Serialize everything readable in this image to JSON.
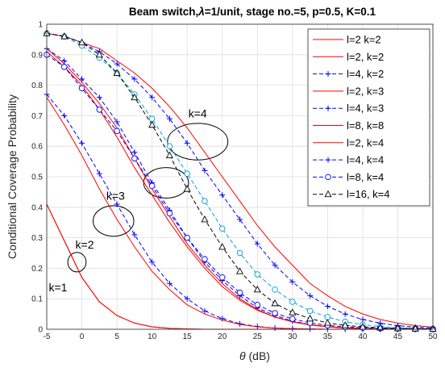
{
  "chart_data": {
    "type": "line",
    "title": "Beam switch,",
    "title_lambda": "λ",
    "title_rest": "=1/unit, stage no.=5, p=0.5, K=0.1",
    "xlabel_symbol": "θ",
    "xlabel_unit": " (dB)",
    "ylabel": "Conditional Coverage Probability",
    "xlim": [
      -5,
      50
    ],
    "ylim": [
      0,
      1
    ],
    "xticks": [
      -5,
      0,
      5,
      10,
      15,
      20,
      25,
      30,
      35,
      40,
      45,
      50
    ],
    "yticks": [
      0,
      0.1,
      0.2,
      0.3,
      0.4,
      0.5,
      0.6,
      0.7,
      0.8,
      0.9,
      1
    ],
    "grid": true,
    "legend_position": "top-right",
    "series": [
      {
        "name": "l=2 k=2",
        "color": "#ff0000",
        "marker": "none",
        "dash": "solid",
        "x": [
          -5,
          -2.5,
          0,
          2.5,
          5,
          7.5,
          10,
          12.5,
          15,
          17.5,
          20,
          22.5,
          25,
          27.5,
          30,
          35,
          40,
          45,
          50
        ],
        "y": [
          0.41,
          0.29,
          0.17,
          0.09,
          0.045,
          0.02,
          0.008,
          0.003,
          0.001,
          0,
          0,
          0,
          0,
          0,
          0,
          0,
          0,
          0,
          0
        ]
      },
      {
        "name": "l=2, k=2",
        "color": "#ff0000",
        "marker": "none",
        "dash": "solid",
        "x": [
          -5,
          -2.5,
          0,
          2.5,
          5,
          7.5,
          10,
          12.5,
          15,
          17.5,
          20,
          22.5,
          25,
          27.5,
          30,
          35,
          40,
          45,
          50
        ],
        "y": [
          0.41,
          0.29,
          0.17,
          0.09,
          0.045,
          0.02,
          0.008,
          0.003,
          0.001,
          0,
          0,
          0,
          0,
          0,
          0,
          0,
          0,
          0,
          0
        ]
      },
      {
        "name": "l=4, k=2",
        "color": "#0000ff",
        "marker": "plus",
        "dash": "dashed",
        "x": [
          -5,
          -2.5,
          0,
          2.5,
          5,
          7.5,
          10,
          12.5,
          15,
          17.5,
          20,
          22.5,
          25,
          27.5,
          30,
          32.5,
          35,
          37.5,
          40,
          42.5,
          45,
          47.5,
          50
        ],
        "y": [
          0.77,
          0.7,
          0.61,
          0.51,
          0.41,
          0.31,
          0.22,
          0.15,
          0.1,
          0.06,
          0.035,
          0.018,
          0.009,
          0.004,
          0.002,
          0.001,
          0,
          0,
          0,
          0,
          0,
          0,
          0
        ]
      },
      {
        "name": "l=2, k=3",
        "color": "#ff0000",
        "marker": "none",
        "dash": "solid",
        "x": [
          -5,
          -2.5,
          0,
          2.5,
          5,
          7.5,
          10,
          12.5,
          15,
          17.5,
          20,
          22.5,
          25,
          27.5,
          30,
          32.5,
          35,
          37.5,
          40,
          45,
          50
        ],
        "y": [
          0.76,
          0.67,
          0.57,
          0.46,
          0.36,
          0.27,
          0.19,
          0.13,
          0.08,
          0.05,
          0.03,
          0.016,
          0.008,
          0.004,
          0.002,
          0.001,
          0,
          0,
          0,
          0,
          0
        ]
      },
      {
        "name": "l=4, k=3",
        "color": "#0000ff",
        "marker": "plus",
        "dash": "dashed",
        "x": [
          -5,
          -2.5,
          0,
          2.5,
          5,
          7.5,
          10,
          12.5,
          15,
          17.5,
          20,
          22.5,
          25,
          27.5,
          30,
          32.5,
          35,
          37.5,
          40,
          42.5,
          45,
          47.5,
          50
        ],
        "y": [
          0.92,
          0.88,
          0.82,
          0.76,
          0.68,
          0.58,
          0.48,
          0.39,
          0.3,
          0.22,
          0.16,
          0.11,
          0.07,
          0.045,
          0.027,
          0.015,
          0.008,
          0.004,
          0.002,
          0.001,
          0,
          0,
          0
        ]
      },
      {
        "name": "l=8, k=8",
        "color": "#ff0000",
        "marker": "none",
        "dash": "solid",
        "x": [
          -5,
          -2.5,
          0,
          2.5,
          5,
          7.5,
          10,
          12.5,
          15,
          17.5,
          20,
          22.5,
          25,
          27.5,
          30,
          32.5,
          35,
          37.5,
          40,
          42.5,
          45,
          47.5,
          50
        ],
        "y": [
          0.92,
          0.87,
          0.81,
          0.74,
          0.66,
          0.56,
          0.46,
          0.37,
          0.28,
          0.21,
          0.15,
          0.1,
          0.065,
          0.04,
          0.024,
          0.014,
          0.008,
          0.004,
          0.002,
          0.001,
          0,
          0,
          0
        ]
      },
      {
        "name": "l=2, k=4",
        "color": "#ff0000",
        "marker": "none",
        "dash": "solid",
        "x": [
          -5,
          -2.5,
          0,
          2.5,
          5,
          7.5,
          10,
          12.5,
          15,
          17.5,
          20,
          22.5,
          25,
          27.5,
          30,
          32.5,
          35,
          37.5,
          40,
          42.5,
          45,
          47.5,
          50
        ],
        "y": [
          0.91,
          0.86,
          0.8,
          0.72,
          0.63,
          0.53,
          0.44,
          0.35,
          0.27,
          0.2,
          0.14,
          0.095,
          0.062,
          0.04,
          0.025,
          0.015,
          0.009,
          0.005,
          0.003,
          0.002,
          0.001,
          0,
          0
        ]
      },
      {
        "name": "l=4, k=4",
        "color": "#0000ff",
        "marker": "plus",
        "dash": "dashed",
        "x": [
          -5,
          -2.5,
          0,
          2.5,
          5,
          7.5,
          10,
          12.5,
          15,
          17.5,
          20,
          22.5,
          25,
          27.5,
          30,
          32.5,
          35,
          37.5,
          40,
          42.5,
          45,
          47.5,
          50
        ],
        "y": [
          0.97,
          0.96,
          0.94,
          0.91,
          0.87,
          0.82,
          0.76,
          0.69,
          0.61,
          0.52,
          0.44,
          0.36,
          0.28,
          0.21,
          0.155,
          0.11,
          0.075,
          0.05,
          0.032,
          0.02,
          0.012,
          0.007,
          0.004
        ]
      },
      {
        "name": "l=8, k=4",
        "color": "#0000ff",
        "marker": "circle",
        "dash": "dashed",
        "x": [
          -5,
          -2.5,
          0,
          2.5,
          5,
          7.5,
          10,
          12.5,
          15,
          17.5,
          20,
          22.5,
          25,
          27.5,
          30,
          32.5,
          35,
          37.5,
          40,
          42.5,
          45,
          47.5,
          50
        ],
        "y": [
          0.9,
          0.86,
          0.79,
          0.72,
          0.65,
          0.56,
          0.47,
          0.38,
          0.3,
          0.23,
          0.17,
          0.12,
          0.08,
          0.053,
          0.034,
          0.021,
          0.013,
          0.008,
          0.005,
          0.003,
          0.002,
          0.001,
          0
        ]
      },
      {
        "name": "l=16, k=4",
        "color": "#000000",
        "marker": "triangle",
        "dash": "dashed",
        "x": [
          -5,
          -2.5,
          0,
          2.5,
          5,
          7.5,
          10,
          12.5,
          15,
          17.5,
          20,
          22.5,
          25,
          27.5,
          30,
          32.5,
          35,
          37.5,
          40,
          42.5,
          45,
          47.5,
          50
        ],
        "y": [
          0.97,
          0.96,
          0.94,
          0.9,
          0.84,
          0.76,
          0.67,
          0.57,
          0.46,
          0.36,
          0.27,
          0.19,
          0.13,
          0.085,
          0.055,
          0.035,
          0.021,
          0.013,
          0.008,
          0.005,
          0.003,
          0.002,
          0.001
        ]
      }
    ],
    "extra_lines": [
      {
        "color": "#00a0d0",
        "marker": "circle",
        "dash": "dashed",
        "x": [
          -5,
          -2.5,
          0,
          2.5,
          5,
          7.5,
          10,
          12.5,
          15,
          17.5,
          20,
          22.5,
          25,
          27.5,
          30,
          32.5,
          35,
          37.5,
          40,
          42.5,
          45,
          47.5,
          50
        ],
        "y": [
          0.97,
          0.96,
          0.93,
          0.89,
          0.84,
          0.77,
          0.69,
          0.6,
          0.51,
          0.42,
          0.33,
          0.25,
          0.18,
          0.13,
          0.09,
          0.06,
          0.04,
          0.025,
          0.015,
          0.009,
          0.005,
          0.003,
          0.002
        ]
      },
      {
        "color": "#ff0000",
        "marker": "none",
        "dash": "solid",
        "x": [
          -5,
          -2.5,
          0,
          2.5,
          5,
          7.5,
          10,
          12.5,
          15,
          17.5,
          20,
          22.5,
          25,
          27.5,
          30,
          32.5,
          35,
          37.5,
          40,
          42.5,
          45,
          47.5,
          50
        ],
        "y": [
          0.97,
          0.96,
          0.94,
          0.92,
          0.88,
          0.84,
          0.79,
          0.73,
          0.66,
          0.58,
          0.5,
          0.42,
          0.34,
          0.27,
          0.21,
          0.15,
          0.11,
          0.075,
          0.05,
          0.032,
          0.02,
          0.012,
          0.007
        ]
      }
    ],
    "annotations": [
      {
        "text": "k=4",
        "x": 16.5,
        "y": 0.695,
        "ellipse": {
          "cx": 16.5,
          "cy": 0.615,
          "rx": 4.3,
          "ry": 0.06
        }
      },
      {
        "text": "k=3",
        "x": 4.8,
        "y": 0.425,
        "ellipse": {
          "cx": 12.0,
          "cy": 0.48,
          "rx": 3.2,
          "ry": 0.05
        }
      },
      {
        "text": "k=2",
        "x": 0.4,
        "y": 0.265,
        "ellipse": {
          "cx": 4.5,
          "cy": 0.355,
          "rx": 2.9,
          "ry": 0.05
        }
      },
      {
        "text": "k=1",
        "x": -3.4,
        "y": 0.125,
        "ellipse": {
          "cx": -0.7,
          "cy": 0.22,
          "rx": 1.3,
          "ry": 0.032
        }
      }
    ]
  }
}
